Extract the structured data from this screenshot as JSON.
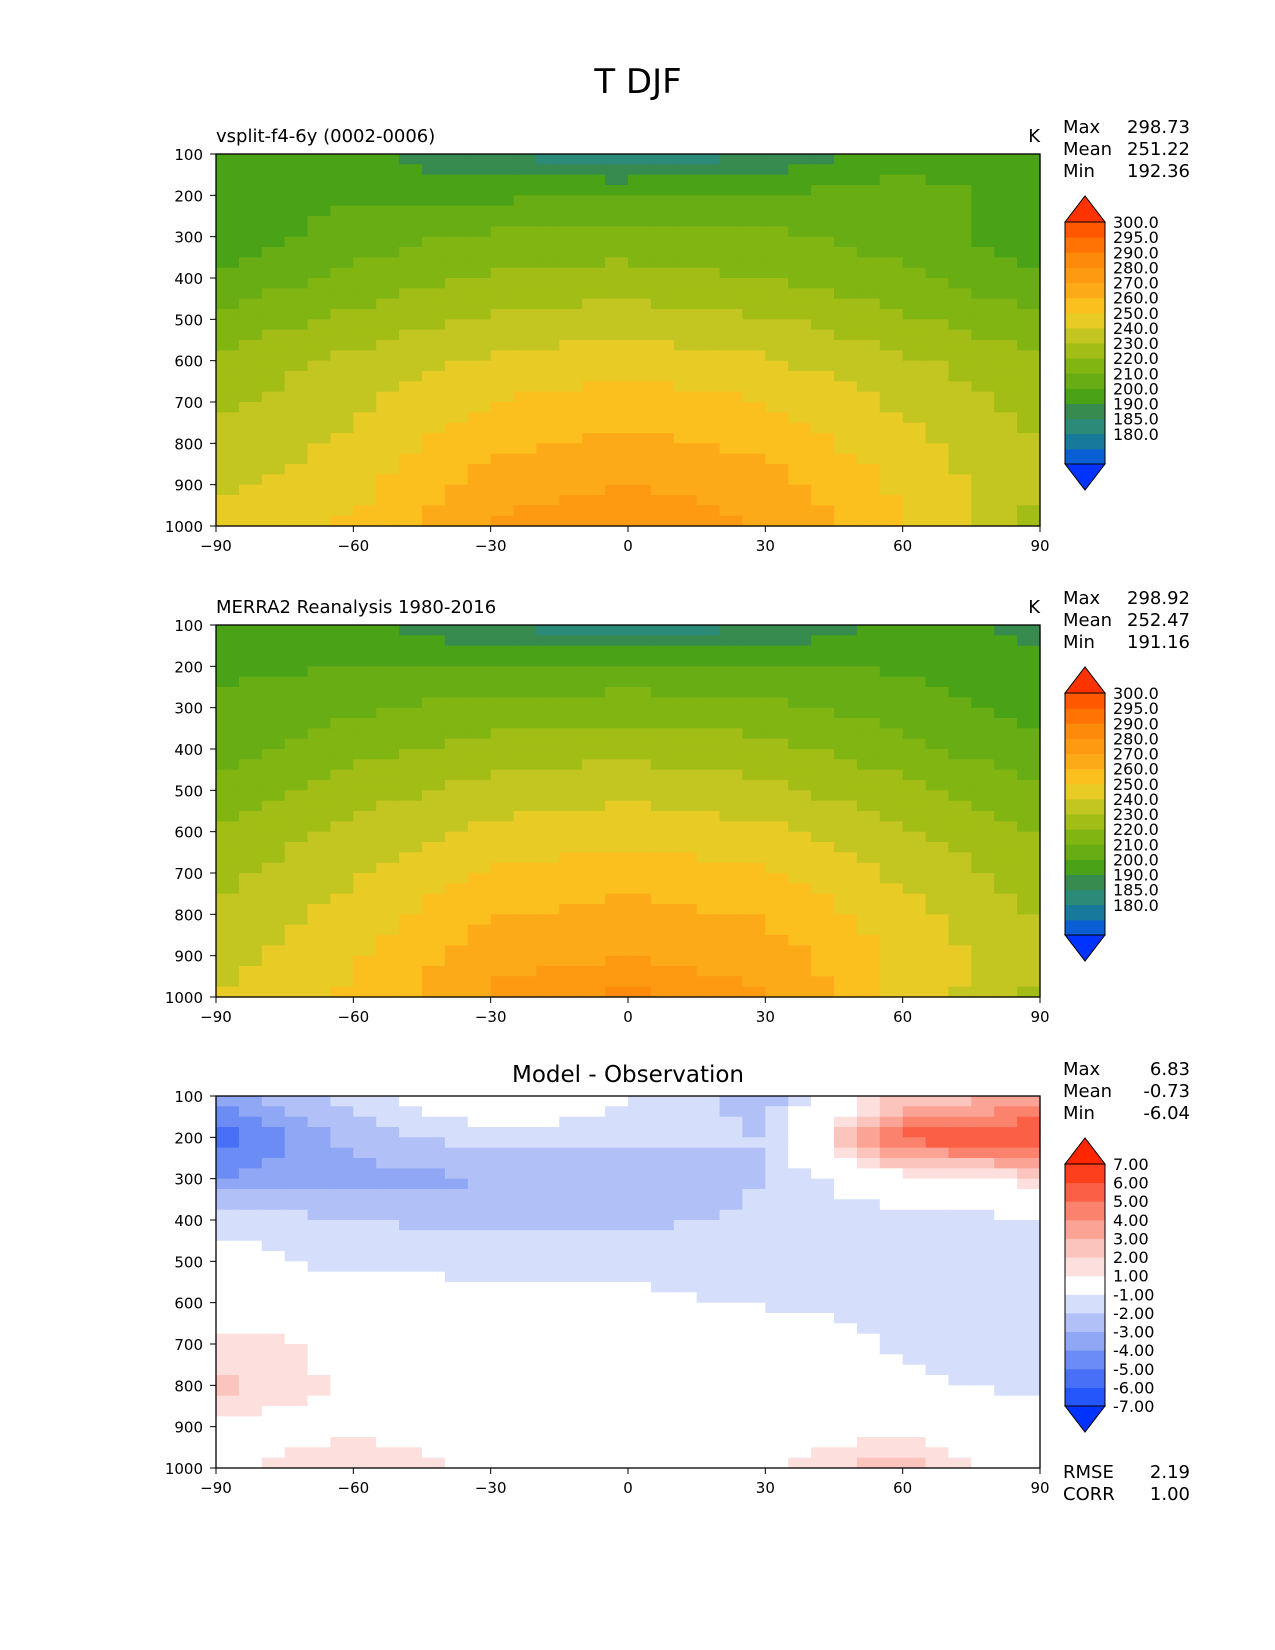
{
  "title": "T DJF",
  "xticks": [
    "−90",
    "−60",
    "−30",
    "0",
    "30",
    "60",
    "90"
  ],
  "yticks": [
    "100",
    "200",
    "300",
    "400",
    "500",
    "600",
    "700",
    "800",
    "900",
    "1000"
  ],
  "stat_labels": {
    "max": "Max",
    "mean": "Mean",
    "min": "Min",
    "rmse": "RMSE",
    "corr": "CORR"
  },
  "colors": {
    "temp_fill_order_low_to_high": [
      "#0033ff",
      "#0a5fd4",
      "#17799b",
      "#2b8a78",
      "#378b4e",
      "#4aa316",
      "#67ad13",
      "#80b512",
      "#a2bd15",
      "#c3c520",
      "#e8cb25",
      "#fbbf1e",
      "#fcaa18",
      "#fd9a12",
      "#fe8a0c",
      "#ff7305",
      "#ff5800",
      "#ff3300"
    ],
    "diff_fill_order_low_to_high": [
      "#0033ff",
      "#2456fc",
      "#4770f7",
      "#6b8cf4",
      "#8fa7f5",
      "#b1c1f8",
      "#d5defa",
      "#ffffff",
      "#fde0dd",
      "#fbc5bd",
      "#fba495",
      "#fb836e",
      "#fb6047",
      "#fd3f1e",
      "#ff2600"
    ]
  },
  "chart_data": [
    {
      "type": "heatmap",
      "panel": "model",
      "title_left": "vsplit-f4-6y (0002-0006)",
      "units": "K",
      "xlim": [
        -90,
        90
      ],
      "ylim": [
        1000,
        100
      ],
      "x": [
        -90,
        -60,
        -30,
        0,
        30,
        60,
        90
      ],
      "y": [
        100,
        200,
        300,
        400,
        500,
        600,
        700,
        800,
        900,
        1000
      ],
      "z": [
        [
          217,
          213,
          199,
          193,
          199,
          216,
          214
        ],
        [
          215,
          218,
          218,
          220,
          220,
          225,
          215
        ],
        [
          212,
          225,
          232,
          234,
          232,
          225,
          213
        ],
        [
          222,
          233,
          241,
          244,
          240,
          232,
          221
        ],
        [
          232,
          243,
          252,
          255,
          251,
          242,
          232
        ],
        [
          242,
          252,
          262,
          265,
          261,
          252,
          242
        ],
        [
          248,
          258,
          270,
          275,
          270,
          258,
          246
        ],
        [
          252,
          262,
          278,
          282,
          278,
          263,
          250
        ],
        [
          258,
          266,
          285,
          290,
          285,
          268,
          250
        ],
        [
          262,
          272,
          292,
          296,
          290,
          270,
          246
        ]
      ],
      "stats": {
        "max": "298.73",
        "mean": "251.22",
        "min": "192.36"
      },
      "colorbar_labels": [
        "300.0",
        "295.0",
        "290.0",
        "280.0",
        "270.0",
        "260.0",
        "250.0",
        "240.0",
        "230.0",
        "220.0",
        "210.0",
        "200.0",
        "190.0",
        "185.0",
        "180.0"
      ]
    },
    {
      "type": "heatmap",
      "panel": "observation",
      "title_left": "MERRA2 Reanalysis 1980-2016",
      "units": "K",
      "xlim": [
        -90,
        90
      ],
      "ylim": [
        1000,
        100
      ],
      "x": [
        -90,
        -60,
        -30,
        0,
        30,
        60,
        90
      ],
      "y": [
        100,
        200,
        300,
        400,
        500,
        600,
        700,
        800,
        900,
        1000
      ],
      "z": [
        [
          215,
          212,
          199,
          193,
          199,
          214,
          206
        ],
        [
          218,
          220,
          220,
          221,
          221,
          219,
          213
        ],
        [
          222,
          228,
          234,
          236,
          233,
          225,
          215
        ],
        [
          226,
          236,
          244,
          247,
          243,
          233,
          222
        ],
        [
          234,
          245,
          254,
          257,
          253,
          243,
          232
        ],
        [
          242,
          253,
          263,
          266,
          262,
          252,
          240
        ],
        [
          247,
          259,
          271,
          276,
          271,
          258,
          245
        ],
        [
          252,
          264,
          279,
          283,
          279,
          264,
          249
        ],
        [
          256,
          268,
          286,
          290,
          285,
          268,
          252
        ],
        [
          260,
          272,
          292,
          297,
          291,
          268,
          247
        ]
      ],
      "stats": {
        "max": "298.92",
        "mean": "252.47",
        "min": "191.16"
      },
      "colorbar_labels": [
        "300.0",
        "295.0",
        "290.0",
        "280.0",
        "270.0",
        "260.0",
        "250.0",
        "240.0",
        "230.0",
        "220.0",
        "210.0",
        "200.0",
        "190.0",
        "185.0",
        "180.0"
      ]
    },
    {
      "type": "heatmap",
      "panel": "difference",
      "title": "Model - Observation",
      "xlim": [
        -90,
        90
      ],
      "ylim": [
        1000,
        100
      ],
      "x": [
        -90,
        -60,
        -30,
        0,
        30,
        60,
        90
      ],
      "y": [
        100,
        200,
        300,
        400,
        500,
        600,
        700,
        800,
        900,
        1000
      ],
      "z": [
        [
          -3.5,
          -1.5,
          0.5,
          -1.0,
          -2.5,
          2.0,
          3.0
        ],
        [
          -5.5,
          -2.5,
          -1.5,
          -1.5,
          -2.0,
          5.5,
          6.5
        ],
        [
          -4.0,
          -3.5,
          -3.0,
          -3.0,
          -2.0,
          0.5,
          1.5
        ],
        [
          -1.2,
          -2.0,
          -2.2,
          -2.2,
          -1.8,
          -1.5,
          -1.2
        ],
        [
          -0.5,
          -1.5,
          -1.5,
          -1.5,
          -1.5,
          -1.5,
          -1.5
        ],
        [
          0.2,
          0.5,
          -0.5,
          -0.6,
          -1.2,
          -1.5,
          -1.5
        ],
        [
          1.5,
          0.6,
          0.2,
          0.2,
          0.4,
          -1.2,
          -1.5
        ],
        [
          2.5,
          0.6,
          0.5,
          0.3,
          -0.5,
          -0.8,
          -1.2
        ],
        [
          0.5,
          0.5,
          0.5,
          0.5,
          -0.5,
          0.5,
          -0.8
        ],
        [
          0.5,
          2.0,
          0.5,
          0.5,
          0.8,
          3.0,
          -1.2
        ]
      ],
      "stats": {
        "max": "6.83",
        "mean": "-0.73",
        "min": "-6.04",
        "rmse": "2.19",
        "corr": "1.00"
      },
      "colorbar_labels": [
        "7.00",
        "6.00",
        "5.00",
        "4.00",
        "3.00",
        "2.00",
        "1.00",
        "-1.00",
        "-2.00",
        "-3.00",
        "-4.00",
        "-5.00",
        "-6.00",
        "-7.00"
      ]
    }
  ]
}
